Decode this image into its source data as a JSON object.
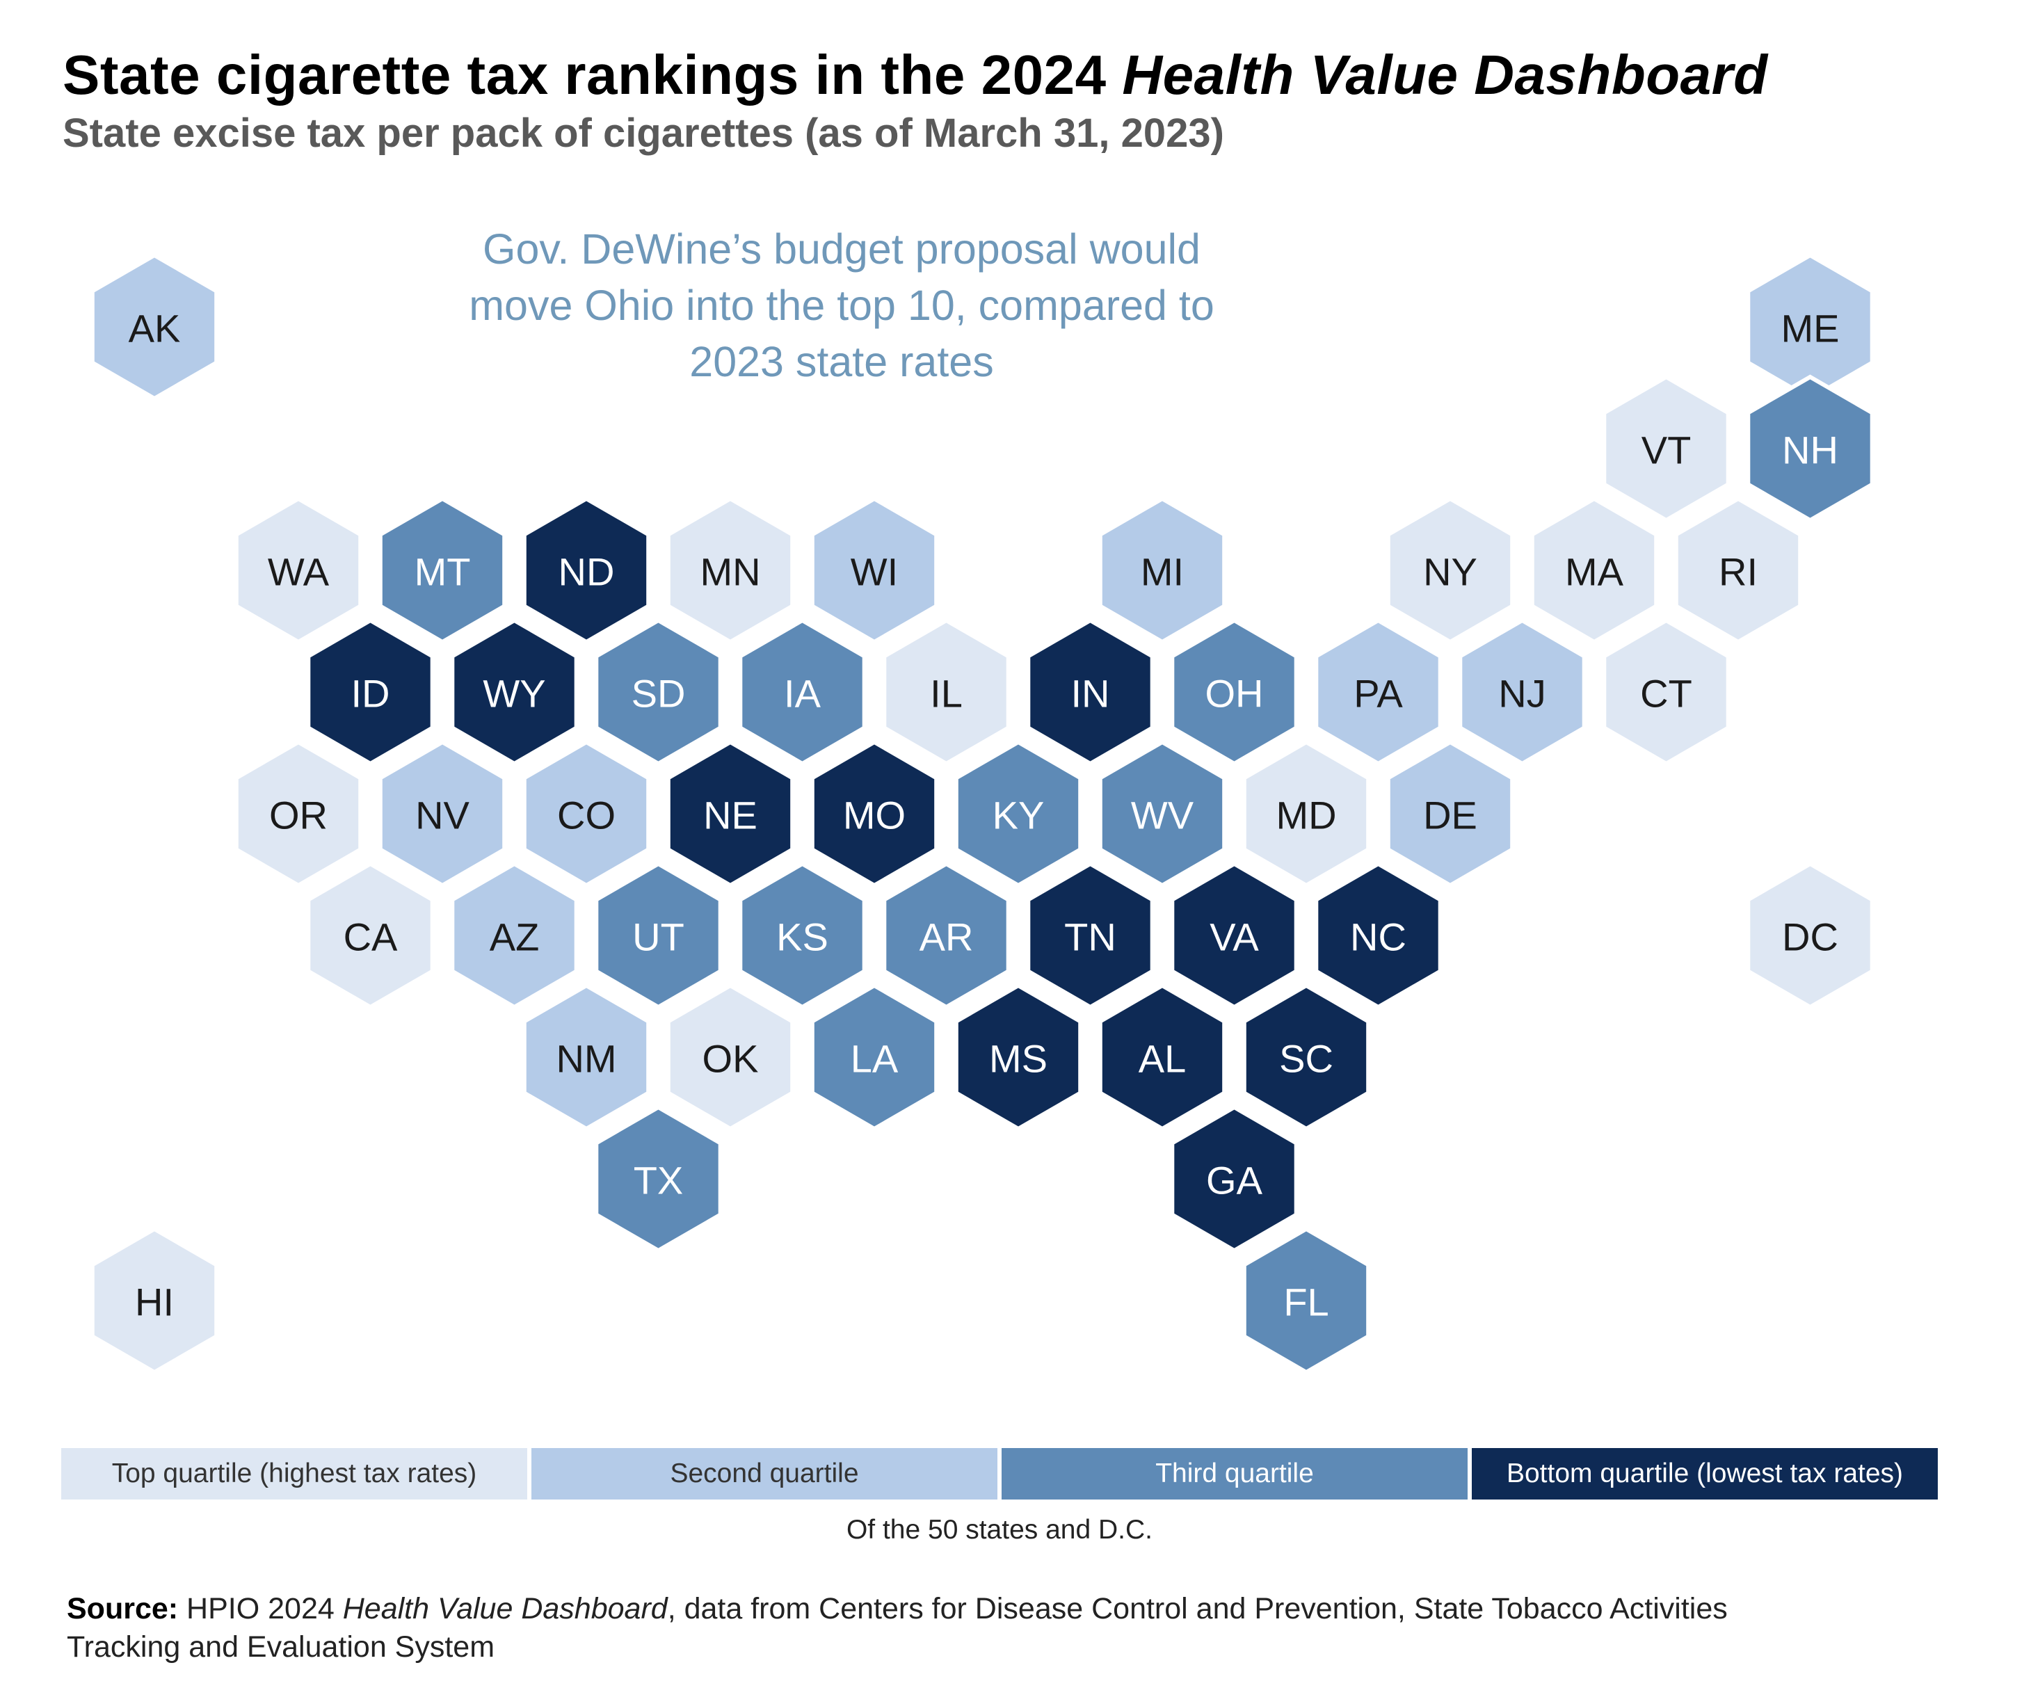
{
  "title": {
    "main": "State cigarette tax rankings in the 2024 ",
    "emphasis": "Health Value Dashboard"
  },
  "subtitle": "State excise tax per pack of cigarettes (as of March 31, 2023)",
  "callout": {
    "lines": [
      "Gov. DeWine’s budget proposal would",
      "move Ohio into the top 10, compared to",
      "2023 state rates"
    ]
  },
  "legend": {
    "items": [
      {
        "label": "Top quartile (highest tax rates)",
        "color": "#dee7f3",
        "text_color": "#333333"
      },
      {
        "label": "Second quartile",
        "color": "#b4cbe8",
        "text_color": "#333333"
      },
      {
        "label": "Third quartile",
        "color": "#5e8ab6",
        "text_color": "#ffffff"
      },
      {
        "label": "Bottom quartile (lowest tax rates)",
        "color": "#0e2a55",
        "text_color": "#ffffff"
      }
    ],
    "note": "Of the 50 states and D.C."
  },
  "source": {
    "label": "Source:",
    "prefix": " HPIO 2024 ",
    "italic": "Health Value Dashboard",
    "rest": ", data from Centers for Disease Control and Prevention, State Tobacco Activities",
    "line2": "Tracking and Evaluation System"
  },
  "map": {
    "quartile_colors": [
      "#dee7f3",
      "#b4cbe8",
      "#5e8ab6",
      "#0e2a55"
    ],
    "quartile_text_colors": [
      "#1a1a1a",
      "#1a1a1a",
      "#ffffff",
      "#ffffff"
    ],
    "states": [
      {
        "abbr": "AK",
        "row": 0,
        "col": 0,
        "quartile": 2
      },
      {
        "abbr": "ME",
        "row": 0,
        "col": 11.5,
        "quartile": 2
      },
      {
        "abbr": "VT",
        "row": 1,
        "col": 10,
        "quartile": 1
      },
      {
        "abbr": "NH",
        "row": 1,
        "col": 11,
        "quartile": 3
      },
      {
        "abbr": "WA",
        "row": 2,
        "col": 1,
        "quartile": 1
      },
      {
        "abbr": "MT",
        "row": 2,
        "col": 2,
        "quartile": 3
      },
      {
        "abbr": "ND",
        "row": 2,
        "col": 3,
        "quartile": 4
      },
      {
        "abbr": "MN",
        "row": 2,
        "col": 4,
        "quartile": 1
      },
      {
        "abbr": "WI",
        "row": 2,
        "col": 5,
        "quartile": 2
      },
      {
        "abbr": "MI",
        "row": 2,
        "col": 7,
        "quartile": 2
      },
      {
        "abbr": "NY",
        "row": 2,
        "col": 9,
        "quartile": 1
      },
      {
        "abbr": "MA",
        "row": 2,
        "col": 10,
        "quartile": 1
      },
      {
        "abbr": "RI",
        "row": 2,
        "col": 11,
        "quartile": 1
      },
      {
        "abbr": "ID",
        "row": 3,
        "col": 1,
        "quartile": 4
      },
      {
        "abbr": "WY",
        "row": 3,
        "col": 2,
        "quartile": 4
      },
      {
        "abbr": "SD",
        "row": 3,
        "col": 3,
        "quartile": 3
      },
      {
        "abbr": "IA",
        "row": 3,
        "col": 4,
        "quartile": 3
      },
      {
        "abbr": "IL",
        "row": 3,
        "col": 5,
        "quartile": 1
      },
      {
        "abbr": "IN",
        "row": 3,
        "col": 6,
        "quartile": 4
      },
      {
        "abbr": "OH",
        "row": 3,
        "col": 7,
        "quartile": 3
      },
      {
        "abbr": "PA",
        "row": 3,
        "col": 8,
        "quartile": 2
      },
      {
        "abbr": "NJ",
        "row": 3,
        "col": 9,
        "quartile": 2
      },
      {
        "abbr": "CT",
        "row": 3,
        "col": 10,
        "quartile": 1
      },
      {
        "abbr": "OR",
        "row": 4,
        "col": 1,
        "quartile": 1
      },
      {
        "abbr": "NV",
        "row": 4,
        "col": 2,
        "quartile": 2
      },
      {
        "abbr": "CO",
        "row": 4,
        "col": 3,
        "quartile": 2
      },
      {
        "abbr": "NE",
        "row": 4,
        "col": 4,
        "quartile": 4
      },
      {
        "abbr": "MO",
        "row": 4,
        "col": 5,
        "quartile": 4
      },
      {
        "abbr": "KY",
        "row": 4,
        "col": 6,
        "quartile": 3
      },
      {
        "abbr": "WV",
        "row": 4,
        "col": 7,
        "quartile": 3
      },
      {
        "abbr": "MD",
        "row": 4,
        "col": 8,
        "quartile": 1
      },
      {
        "abbr": "DE",
        "row": 4,
        "col": 9,
        "quartile": 2
      },
      {
        "abbr": "CA",
        "row": 5,
        "col": 1,
        "quartile": 1
      },
      {
        "abbr": "AZ",
        "row": 5,
        "col": 2,
        "quartile": 2
      },
      {
        "abbr": "UT",
        "row": 5,
        "col": 3,
        "quartile": 3
      },
      {
        "abbr": "KS",
        "row": 5,
        "col": 4,
        "quartile": 3
      },
      {
        "abbr": "AR",
        "row": 5,
        "col": 5,
        "quartile": 3
      },
      {
        "abbr": "TN",
        "row": 5,
        "col": 6,
        "quartile": 4
      },
      {
        "abbr": "VA",
        "row": 5,
        "col": 7,
        "quartile": 4
      },
      {
        "abbr": "NC",
        "row": 5,
        "col": 8,
        "quartile": 4
      },
      {
        "abbr": "DC",
        "row": 5,
        "col": 11,
        "quartile": 1
      },
      {
        "abbr": "NM",
        "row": 6,
        "col": 3,
        "quartile": 2
      },
      {
        "abbr": "OK",
        "row": 6,
        "col": 4,
        "quartile": 1
      },
      {
        "abbr": "LA",
        "row": 6,
        "col": 5,
        "quartile": 3
      },
      {
        "abbr": "MS",
        "row": 6,
        "col": 6,
        "quartile": 4
      },
      {
        "abbr": "AL",
        "row": 6,
        "col": 7,
        "quartile": 4
      },
      {
        "abbr": "SC",
        "row": 6,
        "col": 8,
        "quartile": 4
      },
      {
        "abbr": "TX",
        "row": 7,
        "col": 3,
        "quartile": 3
      },
      {
        "abbr": "GA",
        "row": 7,
        "col": 7,
        "quartile": 4
      },
      {
        "abbr": "HI",
        "row": 8,
        "col": 0,
        "quartile": 1
      },
      {
        "abbr": "FL",
        "row": 8,
        "col": 8,
        "quartile": 3
      }
    ]
  }
}
